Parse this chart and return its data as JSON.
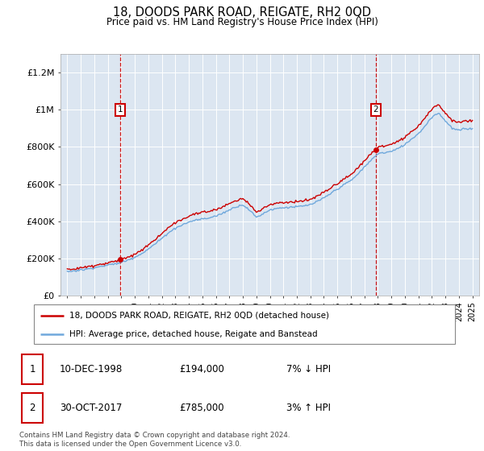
{
  "title": "18, DOODS PARK ROAD, REIGATE, RH2 0QD",
  "subtitle": "Price paid vs. HM Land Registry's House Price Index (HPI)",
  "legend_line1": "18, DOODS PARK ROAD, REIGATE, RH2 0QD (detached house)",
  "legend_line2": "HPI: Average price, detached house, Reigate and Banstead",
  "ann1": {
    "num": "1",
    "date": "10-DEC-1998",
    "price": "£194,000",
    "pct": "7% ↓ HPI"
  },
  "ann2": {
    "num": "2",
    "date": "30-OCT-2017",
    "price": "£785,000",
    "pct": "3% ↑ HPI"
  },
  "footnote": "Contains HM Land Registry data © Crown copyright and database right 2024.\nThis data is licensed under the Open Government Licence v3.0.",
  "sale1_year": 1998.94,
  "sale1_price": 194000,
  "sale2_year": 2017.83,
  "sale2_price": 785000,
  "hpi_color": "#6fa8dc",
  "price_color": "#cc0000",
  "plot_bg_color": "#dce6f1",
  "ylim": [
    0,
    1300000
  ],
  "yticks": [
    0,
    200000,
    400000,
    600000,
    800000,
    1000000,
    1200000
  ],
  "ytick_labels": [
    "£0",
    "£200K",
    "£400K",
    "£600K",
    "£800K",
    "£1M",
    "£1.2M"
  ],
  "ann1_ybox": 1000000,
  "ann2_ybox": 1000000,
  "xmin": 1994.5,
  "xmax": 2025.5
}
